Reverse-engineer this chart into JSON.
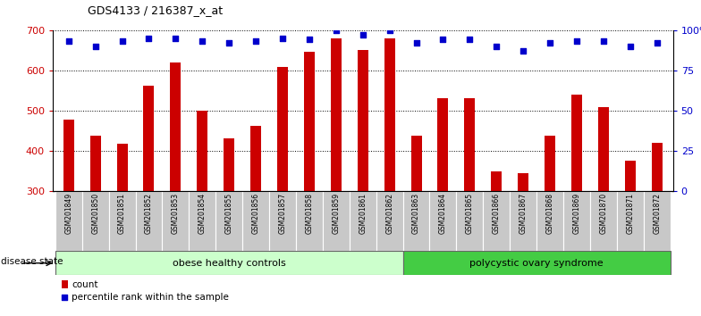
{
  "title": "GDS4133 / 216387_x_at",
  "samples": [
    "GSM201849",
    "GSM201850",
    "GSM201851",
    "GSM201852",
    "GSM201853",
    "GSM201854",
    "GSM201855",
    "GSM201856",
    "GSM201857",
    "GSM201858",
    "GSM201859",
    "GSM201861",
    "GSM201862",
    "GSM201863",
    "GSM201864",
    "GSM201865",
    "GSM201866",
    "GSM201867",
    "GSM201868",
    "GSM201869",
    "GSM201870",
    "GSM201871",
    "GSM201872"
  ],
  "counts": [
    478,
    438,
    417,
    562,
    620,
    500,
    432,
    463,
    608,
    645,
    680,
    650,
    680,
    438,
    530,
    530,
    350,
    345,
    437,
    540,
    508,
    375,
    420
  ],
  "percentiles": [
    93,
    90,
    93,
    95,
    95,
    93,
    92,
    93,
    95,
    94,
    100,
    97,
    100,
    92,
    94,
    94,
    90,
    87,
    92,
    93,
    93,
    90,
    92
  ],
  "group1_label": "obese healthy controls",
  "group2_label": "polycystic ovary syndrome",
  "group1_count": 13,
  "group2_count": 10,
  "bar_color": "#cc0000",
  "dot_color": "#0000cc",
  "group1_bg": "#ccffcc",
  "group2_bg": "#44cc44",
  "tick_label_bg": "#c8c8c8",
  "ylim_left": [
    300,
    700
  ],
  "ylim_right": [
    0,
    100
  ],
  "yticks_left": [
    300,
    400,
    500,
    600,
    700
  ],
  "yticks_right": [
    0,
    25,
    50,
    75,
    100
  ],
  "ytick_labels_right": [
    "0",
    "25",
    "50",
    "75",
    "100%"
  ],
  "legend_count_label": "count",
  "legend_pct_label": "percentile rank within the sample",
  "disease_state_label": "disease state"
}
